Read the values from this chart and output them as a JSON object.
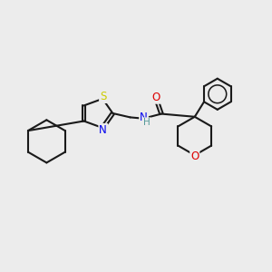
{
  "background_color": "#ececec",
  "bond_color": "#1a1a1a",
  "S_color": "#cccc00",
  "N_color": "#0000ee",
  "O_color": "#dd0000",
  "H_color": "#559999",
  "line_width": 1.5,
  "figsize": [
    3.0,
    3.0
  ],
  "dpi": 100,
  "xlim": [
    0,
    10
  ],
  "ylim": [
    0,
    10
  ]
}
